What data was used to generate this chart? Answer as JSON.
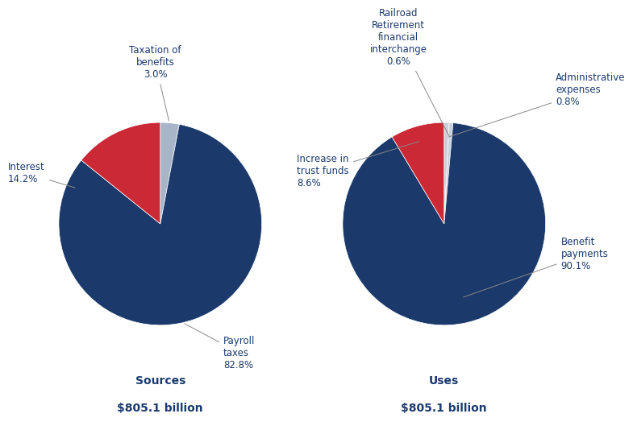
{
  "sources_values": [
    82.8,
    14.2,
    3.0
  ],
  "sources_colors": [
    "#1b3a6b",
    "#cc2936",
    "#a8b4c8"
  ],
  "uses_values": [
    90.1,
    8.6,
    0.6,
    0.8
  ],
  "uses_colors": [
    "#1b3a6b",
    "#cc2936",
    "#c8d0dc",
    "#c8d0dc"
  ],
  "dark_blue": "#1b3a6b",
  "red": "#cc2936",
  "light_gray": "#a8b4c8",
  "text_color": "#1a3a6e",
  "background_color": "#ffffff",
  "title_fontsize": 10,
  "annot_fontsize": 8.5
}
